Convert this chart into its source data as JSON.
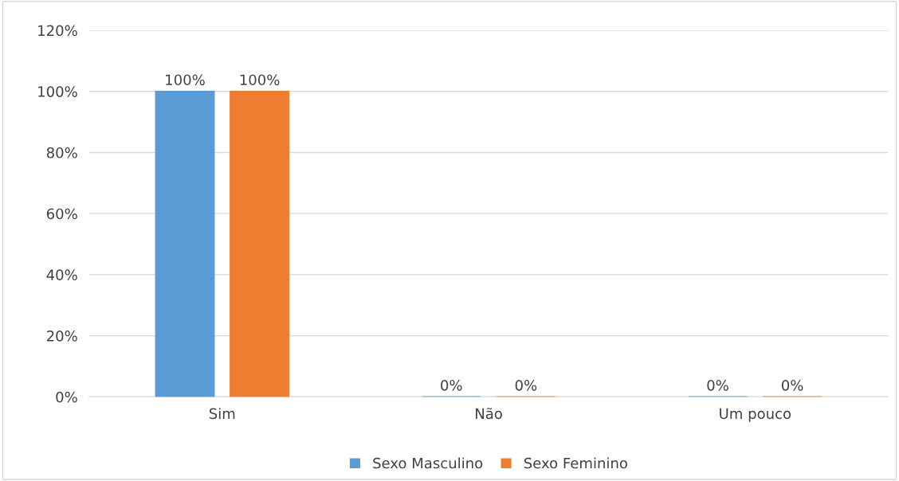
{
  "chart_data": {
    "type": "bar",
    "categories": [
      "Sim",
      "Não",
      "Um pouco"
    ],
    "series": [
      {
        "name": "Sexo Masculino",
        "color": "#5b9bd5",
        "values": [
          100,
          0,
          0
        ],
        "value_labels": [
          "100%",
          "0%",
          "0%"
        ]
      },
      {
        "name": "Sexo Feminino",
        "color": "#ed7d31",
        "values": [
          100,
          0,
          0
        ],
        "value_labels": [
          "100%",
          "0%",
          "0%"
        ]
      }
    ],
    "ylim": [
      0,
      120
    ],
    "yticks": [
      {
        "value": 0,
        "label": "0%"
      },
      {
        "value": 20,
        "label": "20%"
      },
      {
        "value": 40,
        "label": "40%"
      },
      {
        "value": 60,
        "label": "60%"
      },
      {
        "value": 80,
        "label": "80%"
      },
      {
        "value": 100,
        "label": "100%"
      },
      {
        "value": 120,
        "label": "120%"
      }
    ],
    "grid": "y",
    "legend": "bottom"
  }
}
